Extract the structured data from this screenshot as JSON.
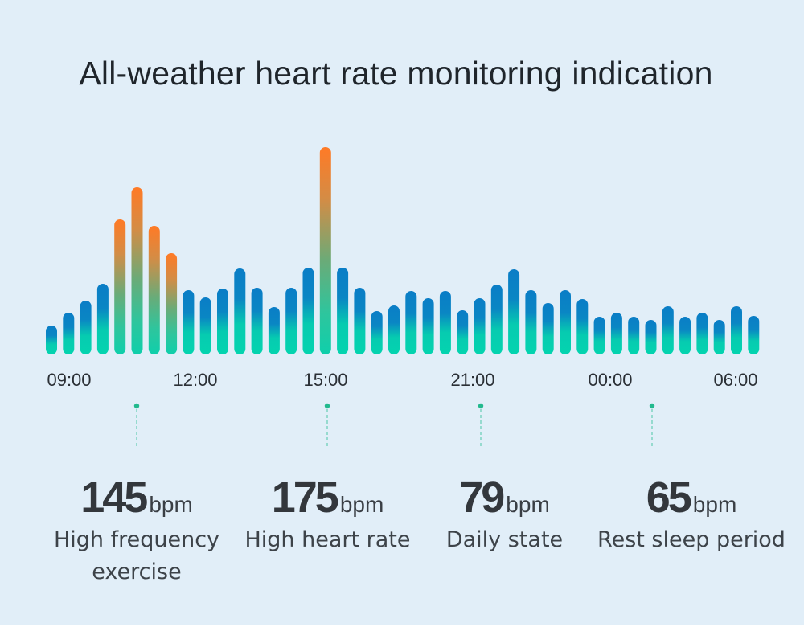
{
  "title": "All-weather heart rate monitoring indication",
  "chart_data": {
    "type": "bar",
    "title": "All-weather heart rate monitoring indication",
    "xlabel": "",
    "ylabel": "",
    "grid": false,
    "x_tick_labels": [
      "09:00",
      "12:00",
      "15:00",
      "21:00",
      "00:00",
      "06:00"
    ],
    "values": [
      36,
      52,
      67,
      88,
      168,
      208,
      160,
      126,
      80,
      71,
      82,
      107,
      83,
      59,
      83,
      108,
      258,
      108,
      83,
      54,
      61,
      79,
      70,
      79,
      55,
      70,
      87,
      106,
      80,
      64,
      80,
      69,
      47,
      52,
      47,
      43,
      60,
      47,
      52,
      43,
      60,
      48
    ],
    "highlighted_indices": [
      4,
      5,
      6,
      7,
      16
    ],
    "ylim": [
      0,
      260
    ],
    "colors": {
      "bar_bottom": "#04d4af",
      "bar_top_normal": "#0a7dc6",
      "bar_top_highlight": "#ff7a26",
      "marker": "#22b98e"
    },
    "annotations": [
      {
        "value": "145",
        "unit": "bpm",
        "label": "High frequency exercise"
      },
      {
        "value": "175",
        "unit": "bpm",
        "label": "High heart rate"
      },
      {
        "value": "79",
        "unit": "bpm",
        "label": "Daily state"
      },
      {
        "value": "65",
        "unit": "bpm",
        "label": "Rest sleep period"
      }
    ]
  },
  "stats": [
    {
      "value": "145",
      "unit": "bpm",
      "label": "High frequency exercise"
    },
    {
      "value": "175",
      "unit": "bpm",
      "label": "High heart rate"
    },
    {
      "value": "79",
      "unit": "bpm",
      "label": "Daily state"
    },
    {
      "value": "65",
      "unit": "bpm",
      "label": "Rest sleep period"
    }
  ]
}
